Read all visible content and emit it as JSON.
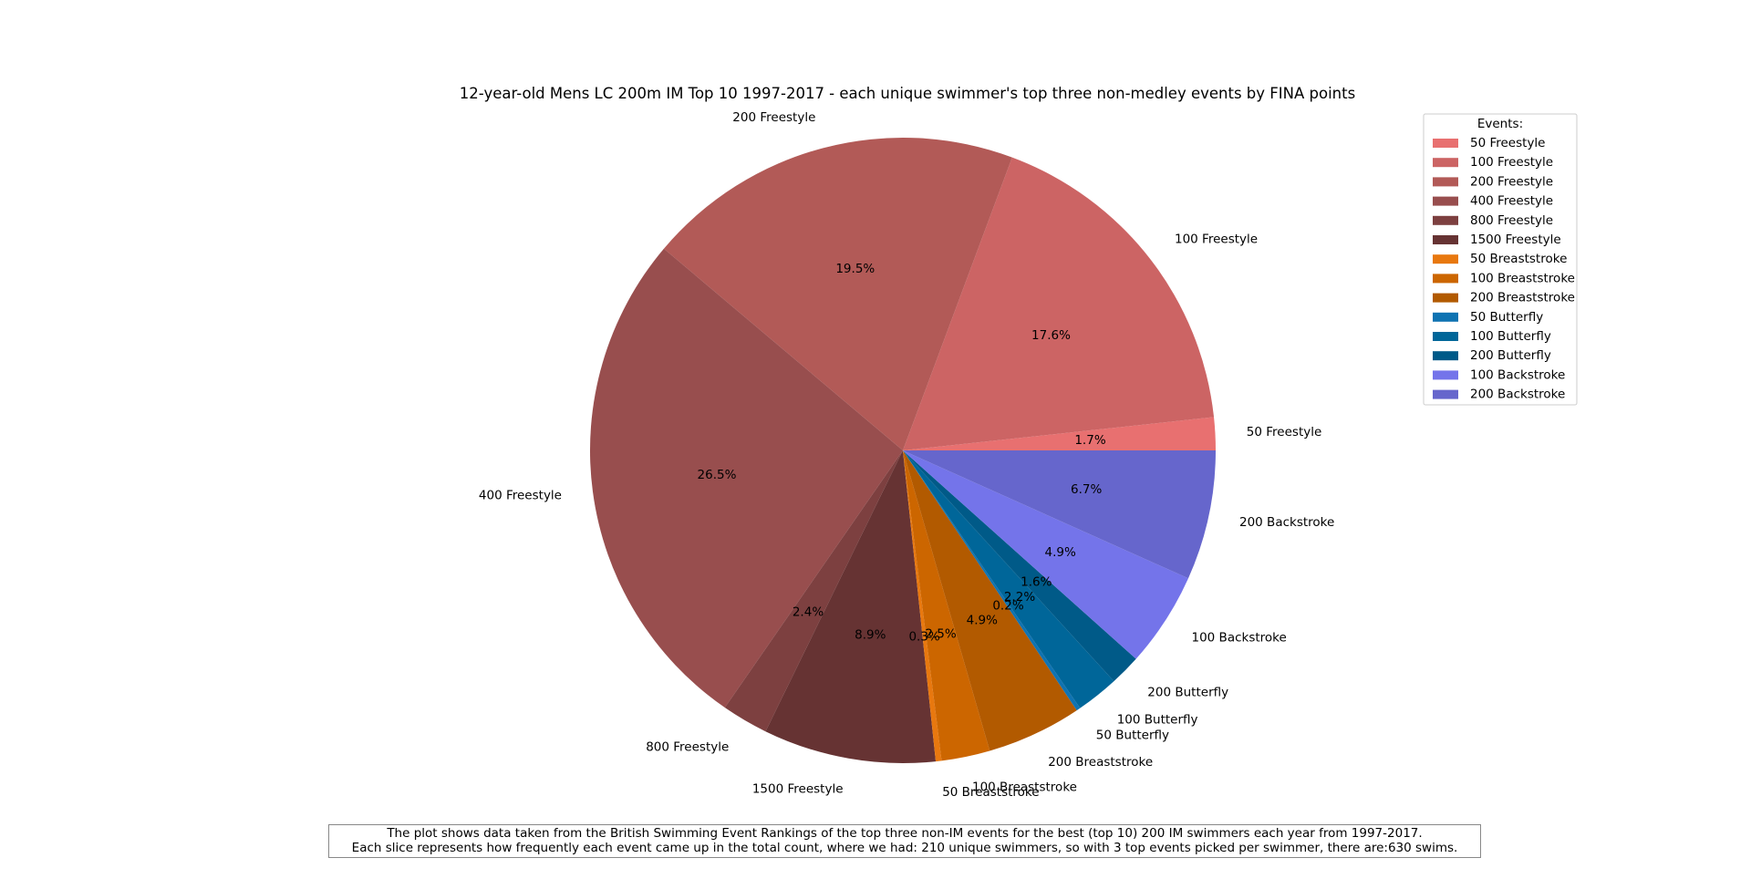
{
  "chart_data": {
    "type": "pie",
    "title": "12-year-old Mens LC 200m IM Top 10 1997-2017 - each unique swimmer's top three non-medley events by FINA points",
    "legend": {
      "title": "Events:",
      "placement": "top-right"
    },
    "start_angle_deg": 0,
    "direction": "counterclockwise",
    "slices": [
      {
        "label": "50 Freestyle",
        "value": 1.7,
        "pct_label": "1.7%",
        "color": "#e87070"
      },
      {
        "label": "100 Freestyle",
        "value": 17.6,
        "pct_label": "17.6%",
        "color": "#cc6464"
      },
      {
        "label": "200 Freestyle",
        "value": 19.5,
        "pct_label": "19.5%",
        "color": "#b25a57"
      },
      {
        "label": "400 Freestyle",
        "value": 26.5,
        "pct_label": "26.5%",
        "color": "#984e4e"
      },
      {
        "label": "800 Freestyle",
        "value": 2.4,
        "pct_label": "2.4%",
        "color": "#7d4040"
      },
      {
        "label": "1500 Freestyle",
        "value": 8.9,
        "pct_label": "8.9%",
        "color": "#663333"
      },
      {
        "label": "50 Breaststroke",
        "value": 0.3,
        "pct_label": "0.3%",
        "color": "#e8780f"
      },
      {
        "label": "100 Breaststroke",
        "value": 2.5,
        "pct_label": "2.5%",
        "color": "#cc6600"
      },
      {
        "label": "200 Breaststroke",
        "value": 4.9,
        "pct_label": "4.9%",
        "color": "#b25a00"
      },
      {
        "label": "50 Butterfly",
        "value": 0.2,
        "pct_label": "0.2%",
        "color": "#0f73b2"
      },
      {
        "label": "100 Butterfly",
        "value": 2.2,
        "pct_label": "2.2%",
        "color": "#006699"
      },
      {
        "label": "200 Butterfly",
        "value": 1.6,
        "pct_label": "1.6%",
        "color": "#005a88"
      },
      {
        "label": "100 Backstroke",
        "value": 4.9,
        "pct_label": "4.9%",
        "color": "#7474ea"
      },
      {
        "label": "200 Backstroke",
        "value": 6.7,
        "pct_label": "6.7%",
        "color": "#6666cc"
      }
    ]
  },
  "caption": {
    "line1": "The plot shows data taken from the British Swimming Event Rankings of the top three non-IM events for the best (top 10) 200 IM swimmers each year from 1997-2017.",
    "line2": "Each slice represents how frequently each event came up in the total count, where we had: 210 unique swimmers, so with 3 top events picked per swimmer, there are:630 swims."
  }
}
